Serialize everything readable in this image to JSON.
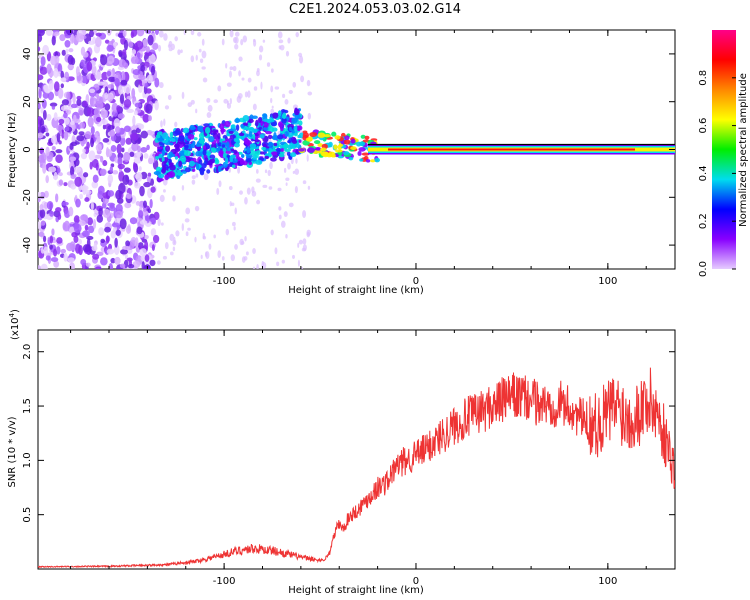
{
  "title": "C2E1.2024.053.03.02.G14",
  "colors": {
    "snr_line": "#ee3333",
    "spectrum_low": "#8800ff",
    "spectrum_mid": "#00ddee",
    "spectrum_high": "#ff2222"
  },
  "chart_data": [
    {
      "type": "heatmap",
      "xlabel": "Height of straight line (km)",
      "ylabel": "Frequency (Hz)",
      "xlim": [
        -197,
        135
      ],
      "ylim": [
        -50,
        50
      ],
      "xticks": [
        -100,
        0,
        100
      ],
      "yticks": [
        -40,
        -20,
        0,
        20,
        40
      ],
      "colorbar": {
        "label": "Normalized spectral amplitude",
        "range": [
          0,
          1
        ],
        "ticks": [
          "0.0",
          "0.2",
          "0.4",
          "0.6",
          "0.8"
        ],
        "colormap": [
          "#e6ccff",
          "#8800ff",
          "#0000ff",
          "#00ddee",
          "#00ee00",
          "#ffff00",
          "#ff8800",
          "#ff0000",
          "#ff0088"
        ]
      },
      "features": {
        "noise_region_x": [
          -197,
          -135
        ],
        "scatter_band_x": [
          -135,
          -60
        ],
        "ridge_x": [
          -60,
          135
        ],
        "ridge_frequency_hz": 0
      }
    },
    {
      "type": "line",
      "xlabel": "Height of straight line (km)",
      "ylabel": "SNR (10 * v/v)",
      "y_multiplier": "(x10",
      "y_multiplier_exp": "4",
      "y_multiplier_close": ")",
      "xlim": [
        -197,
        135
      ],
      "ylim": [
        0,
        22000
      ],
      "xticks": [
        -100,
        0,
        100
      ],
      "yticks": [
        5000,
        10000,
        15000,
        20000
      ],
      "ytick_labels": [
        "0.5",
        "1.0",
        "1.5",
        "2.0"
      ],
      "series": [
        {
          "x": [
            -197,
            -160,
            -130,
            -115,
            -105,
            -95,
            -85,
            -75,
            -65,
            -55,
            -48,
            -45,
            -42,
            -40,
            -38,
            -35,
            -32,
            -30,
            -25,
            -20,
            -15,
            -10,
            -5,
            0,
            5,
            10,
            15,
            20,
            25,
            30,
            35,
            40,
            45,
            50,
            55,
            60,
            65,
            70,
            75,
            80,
            85,
            90,
            95,
            100,
            105,
            110,
            115,
            120,
            125,
            130,
            135
          ],
          "y": [
            200,
            250,
            400,
            700,
            1100,
            1600,
            1900,
            1700,
            1300,
            900,
            800,
            1500,
            3500,
            4200,
            3600,
            4800,
            5200,
            5500,
            6500,
            7500,
            8000,
            9500,
            10000,
            10500,
            11000,
            11800,
            12500,
            13200,
            13800,
            14200,
            14600,
            15000,
            15500,
            15900,
            15800,
            15500,
            15200,
            15000,
            15300,
            14800,
            14000,
            13500,
            13200,
            14500,
            15000,
            14000,
            14200,
            15500,
            14800,
            12000,
            9000
          ]
        }
      ]
    }
  ]
}
